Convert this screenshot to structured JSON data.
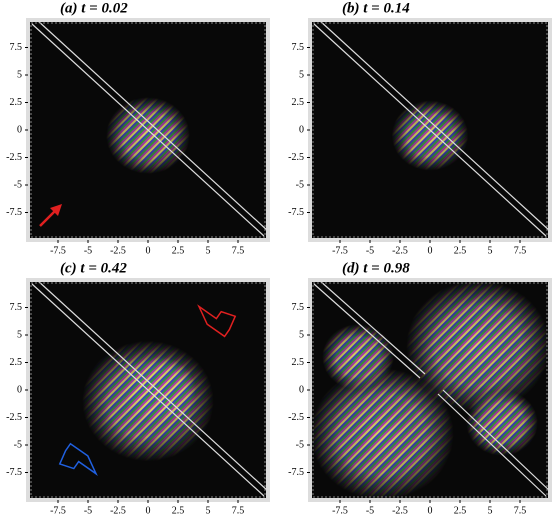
{
  "chart_data": [
    {
      "type": "field",
      "title": "(a)  t = 0.02",
      "xlim": [
        -10,
        10
      ],
      "ylim": [
        -10,
        10
      ],
      "xticks": [
        -7.5,
        -5,
        -2.5,
        0,
        2.5,
        5,
        7.5
      ],
      "yticks": [
        -7.5,
        -5,
        -2.5,
        0,
        2.5,
        5,
        7.5
      ]
    },
    {
      "type": "field",
      "title": "(b)  t = 0.14",
      "xlim": [
        -10,
        10
      ],
      "ylim": [
        -10,
        10
      ],
      "xticks": [
        -7.5,
        -5,
        -2.5,
        0,
        2.5,
        5,
        7.5
      ],
      "yticks": [
        -7.5,
        -5,
        -2.5,
        0,
        2.5,
        5,
        7.5
      ]
    },
    {
      "type": "field",
      "title": "(c)  t = 0.42",
      "xlim": [
        -10,
        10
      ],
      "ylim": [
        -10,
        10
      ],
      "xticks": [
        -7.5,
        -5,
        -2.5,
        0,
        2.5,
        5,
        7.5
      ],
      "yticks": [
        -7.5,
        -5,
        -2.5,
        0,
        2.5,
        5,
        7.5
      ]
    },
    {
      "type": "field",
      "title": "(d)  t = 0.98",
      "xlim": [
        -10,
        10
      ],
      "ylim": [
        -10,
        10
      ],
      "xticks": [
        -7.5,
        -5,
        -2.5,
        0,
        2.5,
        5,
        7.5
      ],
      "yticks": [
        -7.5,
        -5,
        -2.5,
        0,
        2.5,
        5,
        7.5
      ]
    }
  ]
}
